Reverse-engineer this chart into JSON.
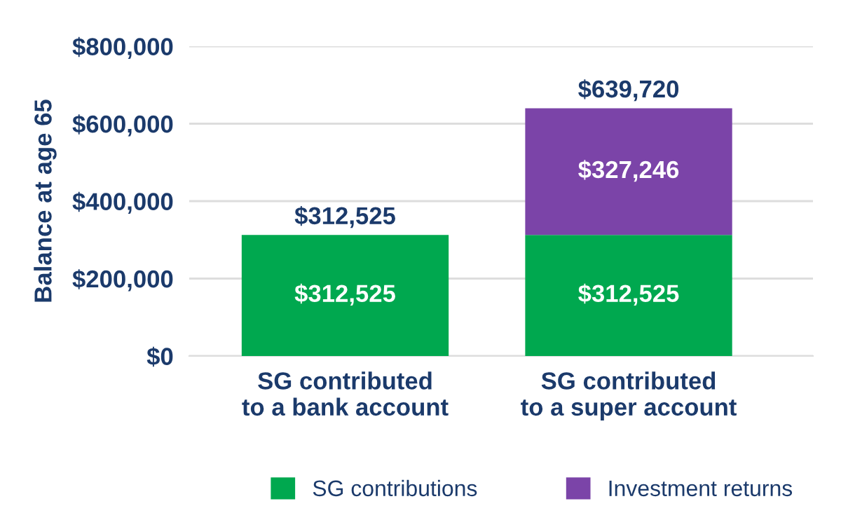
{
  "chart_data": {
    "type": "bar",
    "stacked": true,
    "ylabel": "Balance at age 65",
    "categories": [
      "SG contributed\nto a bank account",
      "SG contributed\nto a super account"
    ],
    "series": [
      {
        "name": "SG contributions",
        "color": "#00a84f",
        "values": [
          312525,
          312525
        ],
        "value_labels": [
          "$312,525",
          "$312,525"
        ]
      },
      {
        "name": "Investment returns",
        "color": "#7b44a8",
        "values": [
          null,
          327246
        ],
        "value_labels": [
          null,
          "$327,246"
        ]
      }
    ],
    "annotations": [
      {
        "text": "$312,525",
        "x": "SG contributed\nto a bank account",
        "y": 312525
      },
      {
        "text": "$639,720",
        "x": "SG contributed\nto a super account",
        "y": 639771
      }
    ],
    "ylim": [
      0,
      800000
    ],
    "yticks": [
      {
        "value": 0,
        "label": "$0"
      },
      {
        "value": 200000,
        "label": "$200,000"
      },
      {
        "value": 400000,
        "label": "$400,000"
      },
      {
        "value": 600000,
        "label": "$600,000"
      },
      {
        "value": 800000,
        "label": "$800,000"
      }
    ],
    "grid": "y",
    "legend": "bottom"
  }
}
